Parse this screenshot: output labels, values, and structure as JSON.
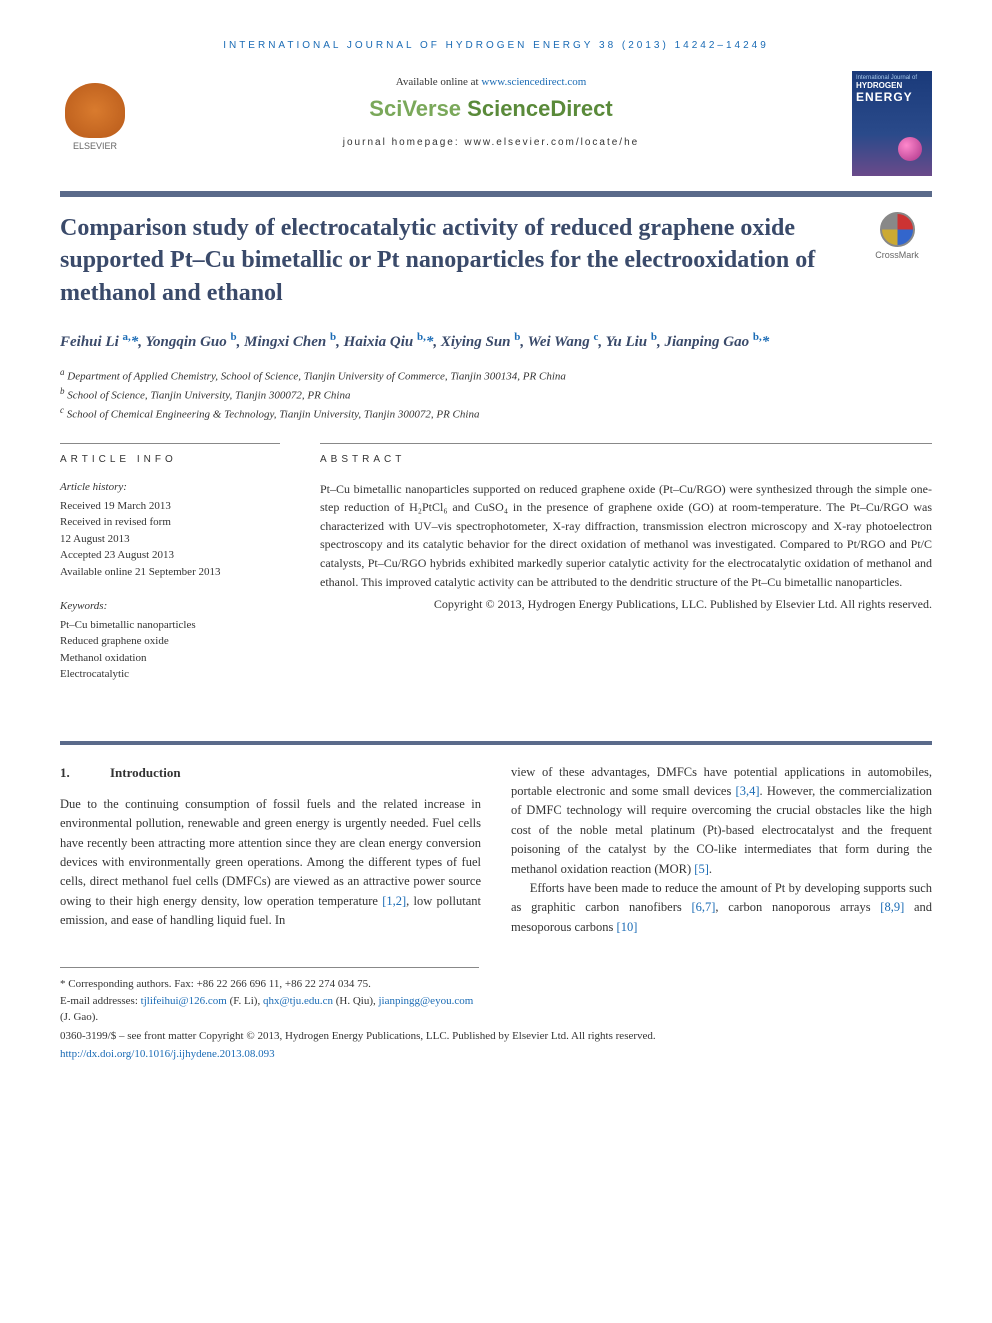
{
  "journal_header": "INTERNATIONAL JOURNAL OF HYDROGEN ENERGY 38 (2013) 14242–14249",
  "available_online_prefix": "Available online at ",
  "available_online_link": "www.sciencedirect.com",
  "sciencedirect_sv": "SciVerse ",
  "sciencedirect_sd": "ScienceDirect",
  "journal_homepage": "journal homepage: www.elsevier.com/locate/he",
  "elsevier_label": "ELSEVIER",
  "cover": {
    "line1": "International Journal of",
    "line2": "HYDROGEN",
    "line3": "ENERGY"
  },
  "crossmark_label": "CrossMark",
  "title": "Comparison study of electrocatalytic activity of reduced graphene oxide supported Pt–Cu bimetallic or Pt nanoparticles for the electrooxidation of methanol and ethanol",
  "authors_html": "Feihui Li <sup>a,</sup><span class='star'>*</span>, Yongqin Guo <sup>b</sup>, Mingxi Chen <sup>b</sup>, Haixia Qiu <sup>b,</sup><span class='star'>*</span>, Xiying Sun <sup>b</sup>, Wei Wang <sup>c</sup>, Yu Liu <sup>b</sup>, Jianping Gao <sup>b,</sup><span class='star'>*</span>",
  "affiliations": [
    "Department of Applied Chemistry, School of Science, Tianjin University of Commerce, Tianjin 300134, PR China",
    "School of Science, Tianjin University, Tianjin 300072, PR China",
    "School of Chemical Engineering & Technology, Tianjin University, Tianjin 300072, PR China"
  ],
  "aff_markers": [
    "a",
    "b",
    "c"
  ],
  "info": {
    "heading": "ARTICLE INFO",
    "history_label": "Article history:",
    "history": [
      "Received 19 March 2013",
      "Received in revised form",
      "12 August 2013",
      "Accepted 23 August 2013",
      "Available online 21 September 2013"
    ],
    "keywords_label": "Keywords:",
    "keywords": [
      "Pt–Cu bimetallic nanoparticles",
      "Reduced graphene oxide",
      "Methanol oxidation",
      "Electrocatalytic"
    ]
  },
  "abstract": {
    "heading": "ABSTRACT",
    "text": "Pt–Cu bimetallic nanoparticles supported on reduced graphene oxide (Pt–Cu/RGO) were synthesized through the simple one-step reduction of H₂PtCl₆ and CuSO₄ in the presence of graphene oxide (GO) at room-temperature. The Pt–Cu/RGO was characterized with UV–vis spectrophotometer, X-ray diffraction, transmission electron microscopy and X-ray photoelectron spectroscopy and its catalytic behavior for the direct oxidation of methanol was investigated. Compared to Pt/RGO and Pt/C catalysts, Pt–Cu/RGO hybrids exhibited markedly superior catalytic activity for the electrocatalytic oxidation of methanol and ethanol. This improved catalytic activity can be attributed to the dendritic structure of the Pt–Cu bimetallic nanoparticles.",
    "copyright": "Copyright © 2013, Hydrogen Energy Publications, LLC. Published by Elsevier Ltd. All rights reserved."
  },
  "section": {
    "num": "1.",
    "title": "Introduction"
  },
  "body": {
    "left": "Due to the continuing consumption of fossil fuels and the related increase in environmental pollution, renewable and green energy is urgently needed. Fuel cells have recently been attracting more attention since they are clean energy conversion devices with environmentally green operations. Among the different types of fuel cells, direct methanol fuel cells (DMFCs) are viewed as an attractive power source owing to their high energy density, low operation temperature [1,2], low pollutant emission, and ease of handling liquid fuel. In",
    "right_p1": "view of these advantages, DMFCs have potential applications in automobiles, portable electronic and some small devices [3,4]. However, the commercialization of DMFC technology will require overcoming the crucial obstacles like the high cost of the noble metal platinum (Pt)-based electrocatalyst and the frequent poisoning of the catalyst by the CO-like intermediates that form during the methanol oxidation reaction (MOR) [5].",
    "right_p2": "Efforts have been made to reduce the amount of Pt by developing supports such as graphitic carbon nanofibers [6,7], carbon nanoporous arrays [8,9] and mesoporous carbons [10]"
  },
  "footnotes": {
    "corr": "* Corresponding authors. Fax: +86 22 266 696 11, +86 22 274 034 75.",
    "emails_label": "E-mail addresses: ",
    "emails": [
      {
        "addr": "tjlifeihui@126.com",
        "name": "(F. Li)"
      },
      {
        "addr": "qhx@tju.edu.cn",
        "name": "(H. Qiu)"
      },
      {
        "addr": "jianpingg@eyou.com",
        "name": "(J. Gao)"
      }
    ]
  },
  "bottom": {
    "line1": "0360-3199/$ – see front matter Copyright © 2013, Hydrogen Energy Publications, LLC. Published by Elsevier Ltd. All rights reserved.",
    "doi": "http://dx.doi.org/10.1016/j.ijhydene.2013.08.093"
  },
  "colors": {
    "link": "#1a6bb5",
    "title": "#3a4a6a",
    "bar": "#5a6a8a",
    "sd_green": "#5a8a3a"
  }
}
